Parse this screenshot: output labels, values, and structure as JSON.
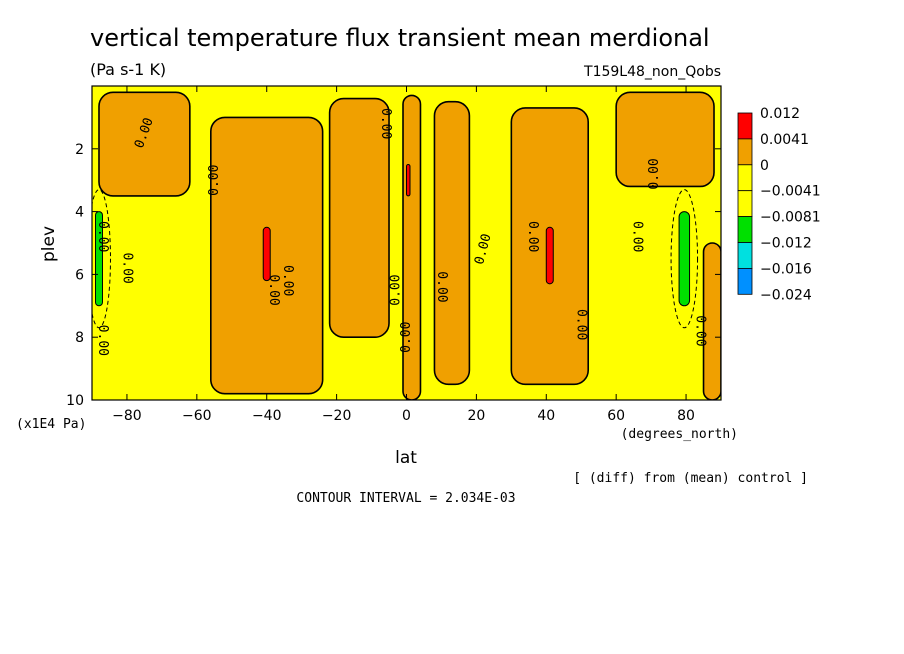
{
  "chart_data": {
    "type": "contour",
    "title": "vertical temperature flux transient mean merdional",
    "units": "(Pa s-1 K)",
    "run_label": "T159L48_non_Qobs",
    "xlabel": "lat",
    "xunits": "(degrees_north)",
    "ylabel": "plev",
    "yunits": "(x1E4 Pa)",
    "xlim": [
      -90,
      90
    ],
    "ylim": [
      10,
      0
    ],
    "xticks": [
      -80,
      -60,
      -40,
      -20,
      0,
      20,
      40,
      60,
      80
    ],
    "yticks": [
      2,
      4,
      6,
      8,
      10
    ],
    "contour_label": "0.00",
    "contour_interval_text": "CONTOUR INTERVAL = 2.034E-03",
    "diff_note": "[ (diff) from (mean) control ]",
    "colorbar": [
      {
        "label": "0.012",
        "color": "#ff0000"
      },
      {
        "label": "0.0041",
        "color": "#f0a000"
      },
      {
        "label": "0",
        "color": "#ffff00"
      },
      {
        "label": "−0.0041",
        "color": "#ffff00"
      },
      {
        "label": "−0.0081",
        "color": "#00e000"
      },
      {
        "label": "−0.012",
        "color": "#00e0e0"
      },
      {
        "label": "−0.016",
        "color": "#0090ff"
      },
      {
        "label": "−0.024",
        "color": "#0040ff"
      }
    ],
    "regions": [
      {
        "kind": "positive",
        "lat": [
          -88,
          -62
        ],
        "plev": [
          0.2,
          3.5
        ]
      },
      {
        "kind": "positive",
        "lat": [
          -56,
          -24
        ],
        "plev": [
          1.0,
          9.8
        ]
      },
      {
        "kind": "positive",
        "lat": [
          -22,
          -5
        ],
        "plev": [
          0.4,
          8.0
        ]
      },
      {
        "kind": "positive",
        "lat": [
          -1,
          4
        ],
        "plev": [
          0.3,
          10
        ]
      },
      {
        "kind": "positive",
        "lat": [
          8,
          18
        ],
        "plev": [
          0.5,
          9.5
        ]
      },
      {
        "kind": "positive",
        "lat": [
          30,
          52
        ],
        "plev": [
          0.7,
          9.5
        ]
      },
      {
        "kind": "positive",
        "lat": [
          60,
          88
        ],
        "plev": [
          0.2,
          3.2
        ]
      },
      {
        "kind": "positive",
        "lat": [
          85,
          90
        ],
        "plev": [
          5.0,
          10
        ]
      },
      {
        "kind": "strong_positive",
        "lat": [
          -41,
          -39
        ],
        "plev": [
          4.5,
          6.2
        ]
      },
      {
        "kind": "strong_positive",
        "lat": [
          0,
          1
        ],
        "plev": [
          2.5,
          3.5
        ]
      },
      {
        "kind": "strong_positive",
        "lat": [
          40,
          42
        ],
        "plev": [
          4.5,
          6.3
        ]
      },
      {
        "kind": "negative",
        "lat": [
          78,
          81
        ],
        "plev": [
          4.0,
          7.0
        ]
      },
      {
        "kind": "negative",
        "lat": [
          -89,
          -87
        ],
        "plev": [
          4.0,
          7.0
        ]
      }
    ],
    "contour_labels": [
      {
        "lat": -75,
        "plev": 1.5,
        "rot": -70
      },
      {
        "lat": -55,
        "plev": 3.0,
        "rot": -90
      },
      {
        "lat": -38,
        "plev": 6.5,
        "rot": 90
      },
      {
        "lat": -80,
        "plev": 5.8,
        "rot": 90
      },
      {
        "lat": -87,
        "plev": 4.8,
        "rot": 90
      },
      {
        "lat": -87,
        "plev": 8.1,
        "rot": 90
      },
      {
        "lat": -34,
        "plev": 6.2,
        "rot": 90
      },
      {
        "lat": -6,
        "plev": 1.2,
        "rot": 90
      },
      {
        "lat": -3,
        "plev": 6.5,
        "rot": -90
      },
      {
        "lat": 0,
        "plev": 8.0,
        "rot": -90
      },
      {
        "lat": 10,
        "plev": 6.4,
        "rot": 90
      },
      {
        "lat": 22,
        "plev": 5.2,
        "rot": -75
      },
      {
        "lat": 36,
        "plev": 4.8,
        "rot": 90
      },
      {
        "lat": 50,
        "plev": 7.6,
        "rot": 90
      },
      {
        "lat": 66,
        "plev": 4.8,
        "rot": 90
      },
      {
        "lat": 71,
        "plev": 2.8,
        "rot": -90
      },
      {
        "lat": 84,
        "plev": 7.8,
        "rot": 90
      }
    ]
  }
}
